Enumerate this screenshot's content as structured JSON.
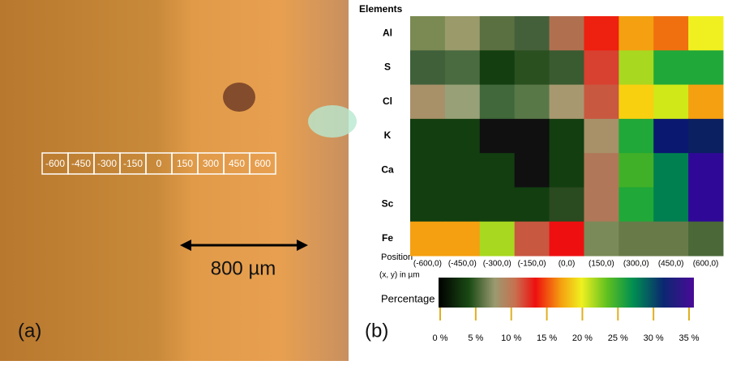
{
  "photo": {
    "panel_label": "(a)",
    "positions": [
      "-600",
      "-450",
      "-300",
      "-150",
      "0",
      "150",
      "300",
      "450",
      "600"
    ],
    "scale_bar": "800 µm"
  },
  "chart_data": {
    "type": "heatmap",
    "panel_label": "(b)",
    "row_title": "Elements",
    "rows": [
      "Al",
      "S",
      "Cl",
      "K",
      "Ca",
      "Sc",
      "Fe"
    ],
    "x_title": [
      "Position",
      "(x, y) in µm"
    ],
    "categories": [
      "(-600,0)",
      "(-450,0)",
      "(-300,0)",
      "(-150,0)",
      "(0,0)",
      "(150,0)",
      "(300,0)",
      "(450,0)",
      "(600,0)"
    ],
    "cell_colors": [
      [
        "#7a8a52",
        "#9a9a6a",
        "#5a7040",
        "#44603a",
        "#b07050",
        "#ee2010",
        "#f5a010",
        "#f07010",
        "#f0f020"
      ],
      [
        "#40603a",
        "#4a6a40",
        "#143e10",
        "#2a5020",
        "#3a5a30",
        "#d84030",
        "#a8d820",
        "#20a838",
        "#20a838"
      ],
      [
        "#a89068",
        "#98a078",
        "#40683a",
        "#587848",
        "#a89870",
        "#c85840",
        "#f8d010",
        "#d0e818",
        "#f5a010"
      ],
      [
        "#123e10",
        "#123e10",
        "#101010",
        "#101010",
        "#123e10",
        "#a89068",
        "#20a838",
        "#0a1870",
        "#0a2060"
      ],
      [
        "#123e10",
        "#123e10",
        "#123e10",
        "#101010",
        "#123e10",
        "#b07858",
        "#40b028",
        "#008050",
        "#300898"
      ],
      [
        "#123e10",
        "#123e10",
        "#123e10",
        "#123e10",
        "#2a4a20",
        "#b07858",
        "#20a838",
        "#008050",
        "#300898"
      ],
      [
        "#f5a010",
        "#f5a010",
        "#a8d820",
        "#c85840",
        "#ee1010",
        "#7a8a58",
        "#687a48",
        "#687a48",
        "#4a6838"
      ]
    ],
    "colorbar_title": "Percentage",
    "clim": [
      0,
      35
    ],
    "cticks": [
      {
        "value": 0,
        "label": "0 %"
      },
      {
        "value": 5,
        "label": "5 %"
      },
      {
        "value": 10,
        "label": "10 %"
      },
      {
        "value": 15,
        "label": "15 %"
      },
      {
        "value": 20,
        "label": "20 %"
      },
      {
        "value": 25,
        "label": "25 %"
      },
      {
        "value": 30,
        "label": "30 %"
      },
      {
        "value": 35,
        "label": "35 %"
      }
    ]
  }
}
